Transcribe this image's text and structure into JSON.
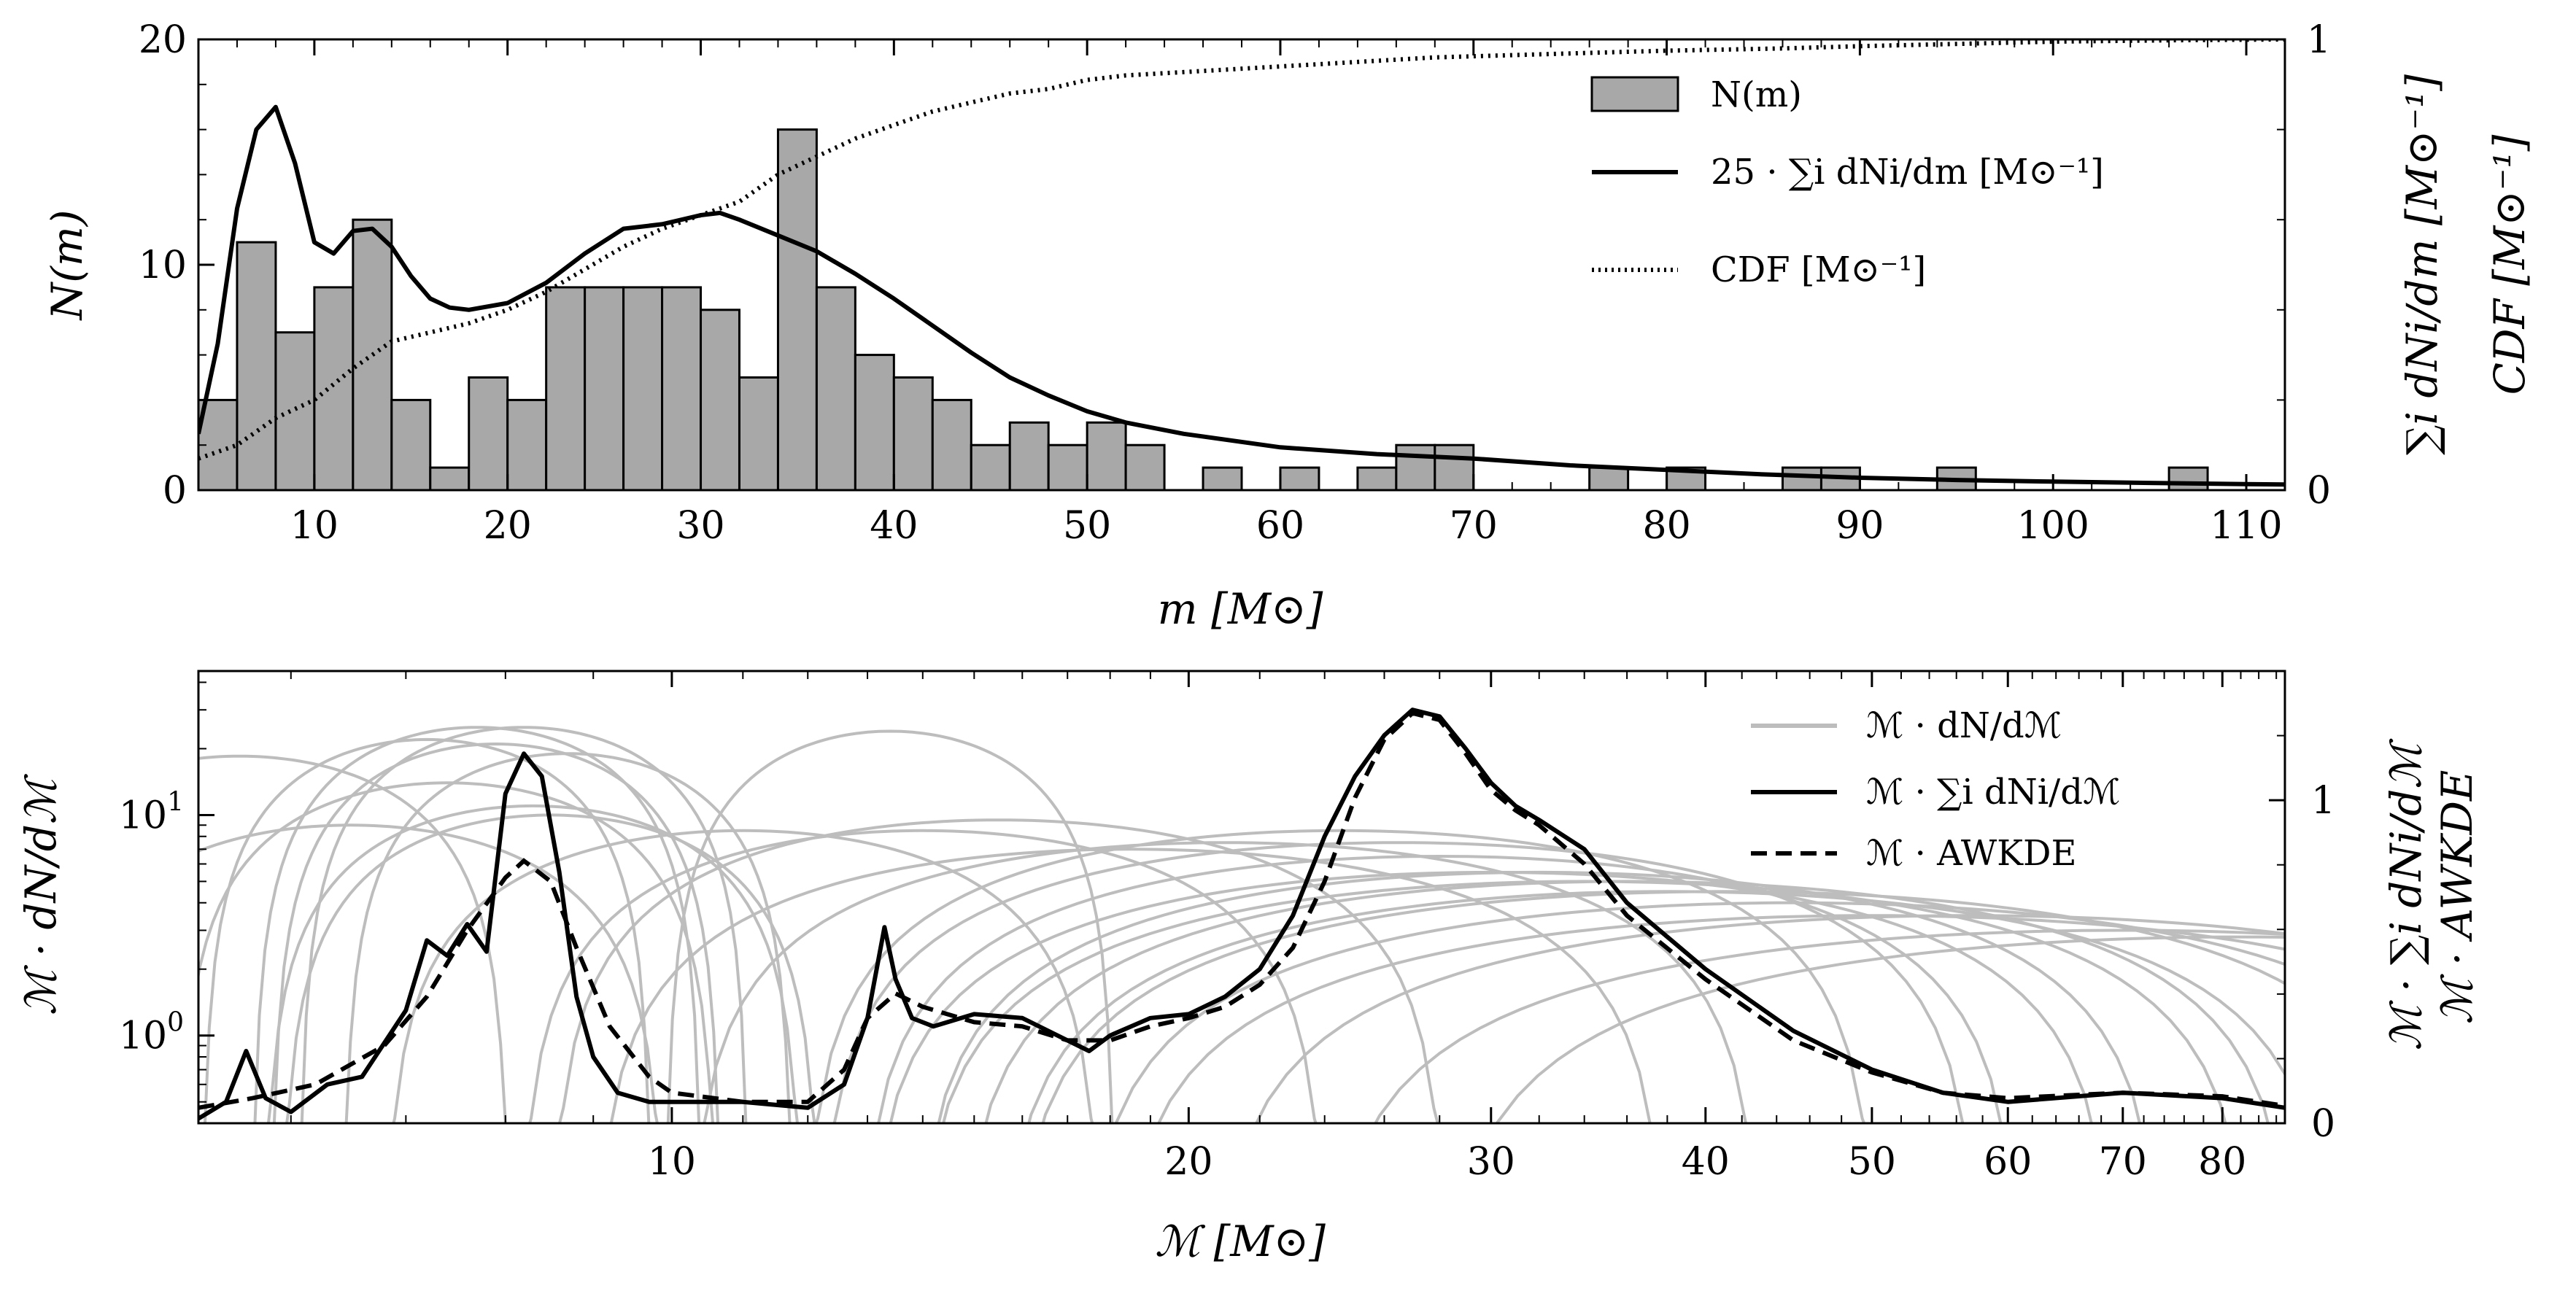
{
  "chart_data": [
    {
      "type": "bar",
      "panel": "top",
      "xlabel": "m [M⊙]",
      "ylabel_left": "N(m)",
      "ylabel_right_1": "∑i dNi/dm [M⊙⁻¹]",
      "ylabel_right_2": "CDF [M⊙⁻¹]",
      "xlim": [
        4,
        112
      ],
      "ylim_left": [
        0,
        20
      ],
      "ylim_right": [
        0,
        1
      ],
      "x_ticks": [
        10,
        20,
        30,
        40,
        50,
        60,
        70,
        80,
        90,
        100,
        110
      ],
      "y_ticks_left": [
        0,
        10,
        20
      ],
      "y_ticks_right": [
        0,
        1
      ],
      "bin_width": 2,
      "bins": [
        {
          "x0": 4,
          "count": 4
        },
        {
          "x0": 6,
          "count": 11
        },
        {
          "x0": 8,
          "count": 7
        },
        {
          "x0": 10,
          "count": 9
        },
        {
          "x0": 12,
          "count": 12
        },
        {
          "x0": 14,
          "count": 4
        },
        {
          "x0": 16,
          "count": 1
        },
        {
          "x0": 18,
          "count": 5
        },
        {
          "x0": 20,
          "count": 4
        },
        {
          "x0": 22,
          "count": 9
        },
        {
          "x0": 24,
          "count": 9
        },
        {
          "x0": 26,
          "count": 9
        },
        {
          "x0": 28,
          "count": 9
        },
        {
          "x0": 30,
          "count": 8
        },
        {
          "x0": 32,
          "count": 5
        },
        {
          "x0": 34,
          "count": 16
        },
        {
          "x0": 36,
          "count": 9
        },
        {
          "x0": 38,
          "count": 6
        },
        {
          "x0": 40,
          "count": 5
        },
        {
          "x0": 42,
          "count": 4
        },
        {
          "x0": 44,
          "count": 2
        },
        {
          "x0": 46,
          "count": 3
        },
        {
          "x0": 48,
          "count": 2
        },
        {
          "x0": 50,
          "count": 3
        },
        {
          "x0": 52,
          "count": 2
        },
        {
          "x0": 56,
          "count": 1
        },
        {
          "x0": 60,
          "count": 1
        },
        {
          "x0": 64,
          "count": 1
        },
        {
          "x0": 66,
          "count": 2
        },
        {
          "x0": 68,
          "count": 2
        },
        {
          "x0": 76,
          "count": 1
        },
        {
          "x0": 80,
          "count": 1
        },
        {
          "x0": 86,
          "count": 1
        },
        {
          "x0": 88,
          "count": 1
        },
        {
          "x0": 94,
          "count": 1
        },
        {
          "x0": 106,
          "count": 1
        }
      ],
      "series": [
        {
          "name": "N(m)",
          "style": "bars"
        },
        {
          "name": "25 · ∑i dNi/dm [M⊙⁻¹]",
          "style": "solid",
          "x": [
            4,
            5,
            6,
            7,
            8,
            9,
            10,
            11,
            12,
            13,
            14,
            15,
            16,
            17,
            18,
            20,
            22,
            24,
            26,
            28,
            30,
            31,
            32,
            34,
            36,
            38,
            40,
            42,
            44,
            46,
            48,
            50,
            52,
            55,
            60,
            65,
            70,
            75,
            80,
            85,
            90,
            95,
            100,
            105,
            110,
            112
          ],
          "y": [
            2.5,
            6.5,
            12.5,
            16.0,
            17.0,
            14.5,
            11.0,
            10.5,
            11.5,
            11.6,
            10.8,
            9.5,
            8.5,
            8.1,
            8.0,
            8.3,
            9.2,
            10.5,
            11.6,
            11.8,
            12.2,
            12.3,
            12.0,
            11.3,
            10.6,
            9.6,
            8.5,
            7.3,
            6.1,
            5.0,
            4.2,
            3.5,
            3.0,
            2.5,
            1.9,
            1.6,
            1.4,
            1.1,
            0.9,
            0.7,
            0.55,
            0.45,
            0.38,
            0.32,
            0.27,
            0.25
          ]
        },
        {
          "name": "CDF [M⊙⁻¹]",
          "style": "dotted",
          "x": [
            4,
            6,
            8,
            10,
            12,
            14,
            16,
            18,
            20,
            22,
            24,
            26,
            28,
            30,
            32,
            34,
            36,
            38,
            40,
            42,
            44,
            46,
            48,
            50,
            52,
            56,
            60,
            64,
            68,
            72,
            76,
            80,
            86,
            90,
            95,
            100,
            106,
            112
          ],
          "y": [
            0.07,
            0.1,
            0.16,
            0.2,
            0.27,
            0.33,
            0.35,
            0.37,
            0.4,
            0.44,
            0.49,
            0.54,
            0.58,
            0.61,
            0.64,
            0.7,
            0.74,
            0.78,
            0.81,
            0.84,
            0.86,
            0.88,
            0.89,
            0.91,
            0.92,
            0.93,
            0.94,
            0.95,
            0.96,
            0.965,
            0.97,
            0.975,
            0.98,
            0.985,
            0.99,
            0.995,
            0.998,
            1.0
          ]
        }
      ],
      "legend": {
        "placement": "upper-right",
        "entries": [
          {
            "label": "N(m)",
            "style": "bars"
          },
          {
            "label": "25 · ∑i dNi/dm [M⊙⁻¹]",
            "style": "solid"
          },
          {
            "label": "CDF [M⊙⁻¹]",
            "style": "dotted"
          }
        ]
      },
      "grid": false
    },
    {
      "type": "line",
      "panel": "bottom",
      "xlabel": "ℳ [M⊙]",
      "ylabel_left": "ℳ · dN/dℳ",
      "ylabel_right_1": "ℳ · ∑i dNi/dℳ",
      "ylabel_right_2": "ℳ · AWKDE",
      "x_scale": "log",
      "y_scale_left": "log",
      "xlim": [
        5.3,
        87
      ],
      "ylim_left": [
        0.4,
        45
      ],
      "ylim_right": [
        0,
        1.4
      ],
      "x_ticks": [
        10,
        20,
        30,
        40,
        50,
        60,
        70,
        80
      ],
      "y_ticks_left": [
        {
          "value": 1,
          "label": "10^0"
        },
        {
          "value": 10,
          "label": "10^1"
        }
      ],
      "y_ticks_right": [
        0,
        1
      ],
      "individual_peaks": [
        {
          "center": 5.6,
          "height": 18.5,
          "width": 0.06
        },
        {
          "center": 6.5,
          "height": 9.0,
          "width": 0.07
        },
        {
          "center": 7.2,
          "height": 22.0,
          "width": 0.05
        },
        {
          "center": 7.4,
          "height": 14.0,
          "width": 0.06
        },
        {
          "center": 7.7,
          "height": 25.0,
          "width": 0.05
        },
        {
          "center": 7.9,
          "height": 21.0,
          "width": 0.05
        },
        {
          "center": 8.2,
          "height": 25.0,
          "width": 0.05
        },
        {
          "center": 8.3,
          "height": 11.0,
          "width": 0.06
        },
        {
          "center": 8.5,
          "height": 10.0,
          "width": 0.06
        },
        {
          "center": 8.7,
          "height": 19.0,
          "width": 0.05
        },
        {
          "center": 11.0,
          "height": 8.5,
          "width": 0.08
        },
        {
          "center": 13.4,
          "height": 24.0,
          "width": 0.05
        },
        {
          "center": 14.0,
          "height": 8.5,
          "width": 0.09
        },
        {
          "center": 15.5,
          "height": 9.5,
          "width": 0.1
        },
        {
          "center": 18.5,
          "height": 7.0,
          "width": 0.12
        },
        {
          "center": 21.0,
          "height": 7.5,
          "width": 0.12
        },
        {
          "center": 24.5,
          "height": 8.5,
          "width": 0.12
        },
        {
          "center": 26.5,
          "height": 7.5,
          "width": 0.13
        },
        {
          "center": 28.0,
          "height": 6.5,
          "width": 0.13
        },
        {
          "center": 30.0,
          "height": 5.5,
          "width": 0.14
        },
        {
          "center": 32.0,
          "height": 5.5,
          "width": 0.14
        },
        {
          "center": 34.0,
          "height": 5.0,
          "width": 0.15
        },
        {
          "center": 36.0,
          "height": 5.0,
          "width": 0.15
        },
        {
          "center": 38.0,
          "height": 4.5,
          "width": 0.15
        },
        {
          "center": 41.0,
          "height": 4.5,
          "width": 0.16
        },
        {
          "center": 45.0,
          "height": 4.0,
          "width": 0.16
        },
        {
          "center": 50.0,
          "height": 3.5,
          "width": 0.17
        },
        {
          "center": 57.0,
          "height": 3.5,
          "width": 0.17
        },
        {
          "center": 70.0,
          "height": 3.0,
          "width": 0.18
        },
        {
          "center": 82.0,
          "height": 2.8,
          "width": 0.18
        }
      ],
      "series": [
        {
          "name": "ℳ · dN/dℳ",
          "style": "light-gray"
        },
        {
          "name": "ℳ · ∑i dNi/dℳ",
          "style": "solid",
          "x": [
            5.3,
            5.5,
            5.65,
            5.8,
            6.0,
            6.3,
            6.6,
            7.0,
            7.2,
            7.4,
            7.6,
            7.8,
            8.0,
            8.2,
            8.4,
            8.6,
            8.8,
            9.0,
            9.3,
            9.7,
            10.0,
            11.0,
            12.0,
            12.6,
            13.0,
            13.3,
            13.5,
            13.8,
            14.2,
            15.0,
            16.0,
            17.0,
            17.5,
            18.0,
            19.0,
            20.0,
            21.0,
            22.0,
            23.0,
            24.0,
            25.0,
            26.0,
            27.0,
            28.0,
            29.0,
            30.0,
            31.0,
            32.0,
            34.0,
            36.0,
            40.0,
            45.0,
            50.0,
            55.0,
            60.0,
            70.0,
            80.0,
            87.0
          ],
          "y": [
            0.42,
            0.5,
            0.85,
            0.52,
            0.45,
            0.6,
            0.65,
            1.3,
            2.7,
            2.3,
            3.2,
            2.4,
            12.5,
            19.0,
            15.0,
            5.5,
            1.5,
            0.8,
            0.55,
            0.5,
            0.5,
            0.5,
            0.47,
            0.6,
            1.2,
            3.1,
            1.8,
            1.2,
            1.1,
            1.25,
            1.2,
            0.95,
            0.85,
            1.0,
            1.2,
            1.25,
            1.5,
            2.0,
            3.5,
            8.0,
            15.0,
            23.0,
            30.0,
            28.0,
            20.0,
            14.0,
            11.0,
            9.5,
            7.0,
            4.0,
            2.0,
            1.05,
            0.7,
            0.55,
            0.5,
            0.55,
            0.52,
            0.47
          ]
        },
        {
          "name": "ℳ · AWKDE",
          "style": "dashed",
          "x": [
            5.3,
            5.7,
            6.2,
            6.8,
            7.2,
            7.6,
            8.0,
            8.2,
            8.5,
            8.8,
            9.2,
            9.7,
            10.0,
            11.0,
            12.0,
            12.6,
            13.0,
            13.5,
            14.0,
            15.0,
            16.0,
            17.0,
            18.0,
            19.0,
            20.0,
            21.0,
            22.0,
            23.0,
            24.0,
            25.0,
            26.0,
            27.0,
            28.0,
            29.0,
            30.0,
            31.0,
            32.0,
            34.0,
            36.0,
            40.0,
            45.0,
            50.0,
            55.0,
            60.0,
            70.0,
            80.0,
            87.0
          ],
          "y": [
            0.47,
            0.52,
            0.6,
            0.9,
            1.5,
            3.0,
            5.2,
            6.2,
            5.0,
            2.5,
            1.1,
            0.65,
            0.55,
            0.5,
            0.5,
            0.7,
            1.2,
            1.55,
            1.35,
            1.15,
            1.1,
            0.95,
            0.95,
            1.1,
            1.2,
            1.35,
            1.7,
            2.5,
            5.0,
            12.0,
            22.0,
            29.0,
            27.0,
            19.0,
            13.0,
            10.5,
            9.0,
            6.0,
            3.5,
            1.8,
            0.95,
            0.68,
            0.55,
            0.52,
            0.55,
            0.53,
            0.48
          ]
        }
      ],
      "legend": {
        "placement": "upper-right",
        "entries": [
          {
            "label": "ℳ · dN/dℳ",
            "style": "light-gray"
          },
          {
            "label": "ℳ · ∑i dNi/dℳ",
            "style": "solid"
          },
          {
            "label": "ℳ · AWKDE",
            "style": "dashed"
          }
        ]
      },
      "grid": false
    }
  ],
  "colors": {
    "bar_fill": "#a8a8a8",
    "bar_edge": "#000000",
    "line": "#000000",
    "light_gray": "#bdbdbd"
  }
}
